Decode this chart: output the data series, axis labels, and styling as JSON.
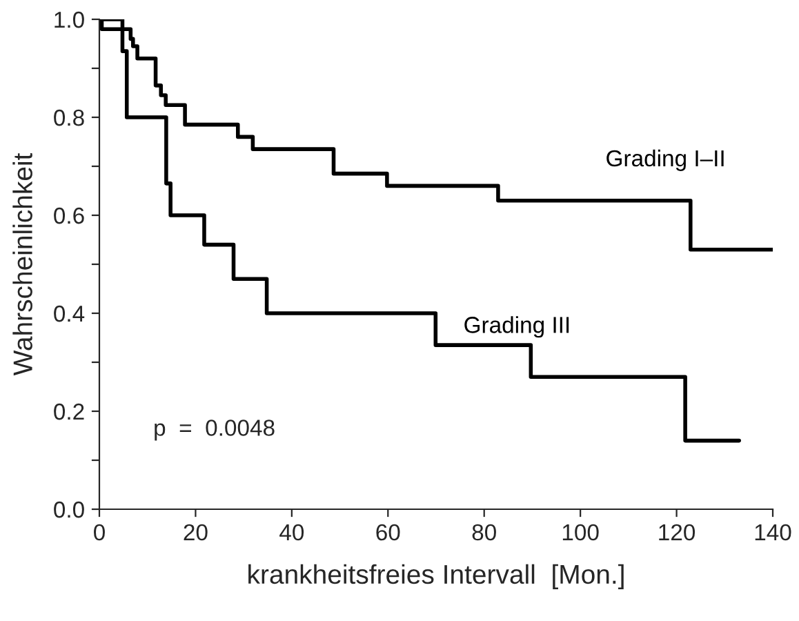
{
  "chart_data": {
    "type": "step",
    "xlabel": "krankheitsfreies Intervall  [Mon.]",
    "ylabel": "Wahrscheinlichkeit",
    "xlim": [
      0,
      140
    ],
    "ylim": [
      0,
      1.0
    ],
    "xticks": [
      0,
      20,
      40,
      60,
      80,
      100,
      120,
      140
    ],
    "yticks": [
      {
        "value": 0,
        "label": "0.0"
      },
      {
        "value": 0.1,
        "label": null
      },
      {
        "value": 0.2,
        "label": "0.2"
      },
      {
        "value": 0.3,
        "label": null
      },
      {
        "value": 0.4,
        "label": "0.4"
      },
      {
        "value": 0.5,
        "label": null
      },
      {
        "value": 0.6,
        "label": "0.6"
      },
      {
        "value": 0.7,
        "label": null
      },
      {
        "value": 0.8,
        "label": "0.8"
      },
      {
        "value": 0.9,
        "label": null
      },
      {
        "value": 1.0,
        "label": "1.0"
      }
    ],
    "grid": false,
    "legend": false,
    "series": [
      {
        "name": "Grading I–II",
        "color": "#000000",
        "x": [
          0,
          0.5,
          6.5,
          7.0,
          7.9,
          11.7,
          12.8,
          13.8,
          17.8,
          28.8,
          31.9,
          48.7,
          59.8,
          82.9,
          122.9,
          140
        ],
        "values": [
          1.0,
          0.98,
          0.96,
          0.945,
          0.92,
          0.865,
          0.845,
          0.825,
          0.785,
          0.76,
          0.735,
          0.685,
          0.66,
          0.63,
          0.53,
          0.53
        ]
      },
      {
        "name": "Grading III",
        "color": "#000000",
        "x": [
          0,
          4.8,
          5.7,
          13.9,
          14.8,
          21.8,
          27.9,
          34.8,
          69.9,
          89.7,
          121.8,
          133
        ],
        "values": [
          1.0,
          0.935,
          0.8,
          0.665,
          0.6,
          0.54,
          0.47,
          0.4,
          0.335,
          0.27,
          0.14,
          0.14
        ]
      }
    ],
    "annotations": [
      "p  =  0.0048"
    ]
  }
}
